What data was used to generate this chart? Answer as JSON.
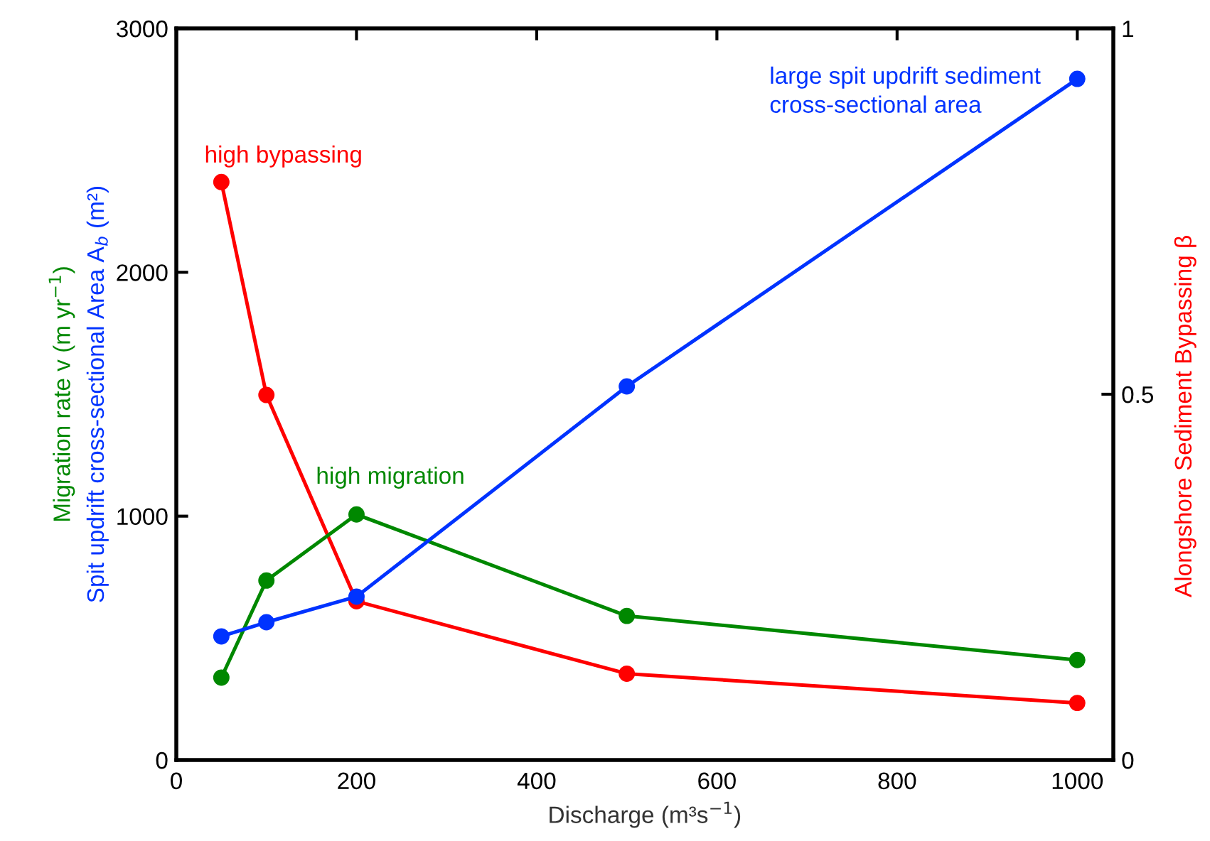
{
  "chart_data": {
    "type": "line",
    "xlabel": "Discharge (m³s$^{−1}$)",
    "x": [
      50,
      100,
      200,
      500,
      1000
    ],
    "xlim": [
      0,
      1040
    ],
    "xticks": [
      0,
      200,
      400,
      600,
      800,
      1000
    ],
    "ylim": [
      0,
      3000
    ],
    "yticks": [
      0,
      1000,
      2000,
      3000
    ],
    "y2lim": [
      0,
      1
    ],
    "y2ticks": [
      0,
      {
        "value": 0.5,
        "label": "0.5"
      },
      1
    ],
    "marker": "circle",
    "line_style": "solid",
    "grid": false,
    "legend": false,
    "series": [
      {
        "name": "Spit updrift cross-sectional Area A$_{b}$ (m²)",
        "color": "#0033ff",
        "values": [
          507,
          565,
          670,
          1532,
          2793
        ]
      },
      {
        "name": "Migration rate v (m yr$^{−1}$)",
        "color": "#008800",
        "values": [
          338,
          736,
          1007,
          591,
          410
        ]
      },
      {
        "name": "Alongshore Sediment Bypassing β",
        "color": "#ff0000",
        "axis": "y2",
        "values": [
          0.79,
          0.499,
          0.217,
          0.118,
          0.078
        ]
      }
    ],
    "annotations": [
      "large spit updrift sediment\ncross-sectional area",
      "high migration",
      "high bypassing"
    ]
  }
}
